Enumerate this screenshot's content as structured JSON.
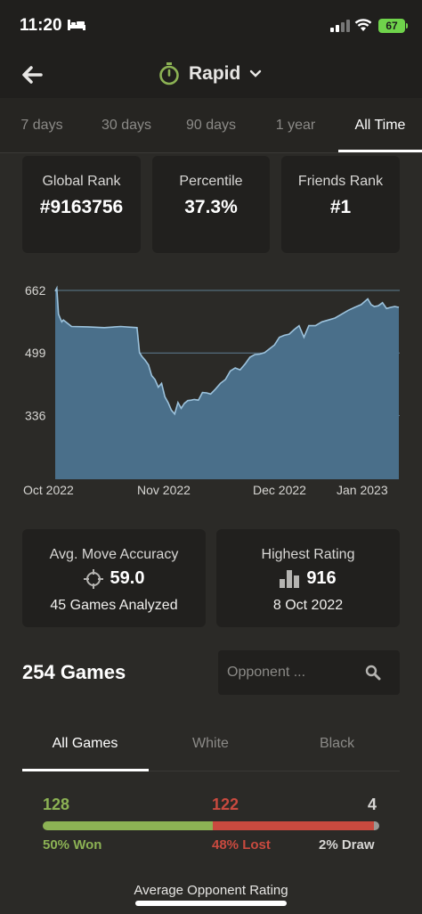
{
  "status": {
    "time": "11:20",
    "battery": "67"
  },
  "header": {
    "title": "Rapid"
  },
  "tabs": [
    "7 days",
    "30 days",
    "90 days",
    "1 year",
    "All Time"
  ],
  "ranks": [
    {
      "label": "Global Rank",
      "value": "#9163756"
    },
    {
      "label": "Percentile",
      "value": "37.3%"
    },
    {
      "label": "Friends Rank",
      "value": "#1"
    }
  ],
  "chart_data": {
    "type": "area",
    "y_ticks": [
      "662",
      "499",
      "336"
    ],
    "x_ticks": [
      "Oct 2022",
      "Nov 2022",
      "Dec 2022",
      "Jan 2023"
    ],
    "ylim": [
      170,
      662
    ],
    "x": [
      0,
      2,
      4,
      6,
      8,
      10,
      20,
      40,
      60,
      80,
      100,
      103,
      106,
      110,
      114,
      118,
      122,
      126,
      130,
      134,
      138,
      142,
      146,
      150,
      154,
      158,
      162,
      166,
      170,
      175,
      180,
      185,
      190,
      196,
      202,
      208,
      214,
      220,
      226,
      232,
      238,
      244,
      250,
      256,
      262,
      268,
      274,
      280,
      286,
      292,
      298,
      304,
      310,
      318,
      326,
      334,
      342,
      350,
      358,
      366,
      374,
      382,
      386,
      390,
      395,
      400,
      405,
      410,
      415,
      420
    ],
    "values": [
      660,
      668,
      600,
      590,
      580,
      585,
      568,
      567,
      565,
      568,
      565,
      500,
      490,
      480,
      468,
      440,
      430,
      410,
      420,
      385,
      370,
      350,
      340,
      370,
      355,
      368,
      375,
      376,
      378,
      376,
      396,
      395,
      392,
      405,
      420,
      430,
      452,
      460,
      455,
      470,
      488,
      495,
      496,
      500,
      510,
      520,
      540,
      545,
      548,
      560,
      570,
      540,
      570,
      570,
      580,
      585,
      590,
      600,
      610,
      618,
      625,
      640,
      625,
      620,
      622,
      630,
      615,
      618,
      620,
      618
    ]
  },
  "accuracy": {
    "title": "Avg. Move Accuracy",
    "value": "59.0",
    "sub": "45 Games Analyzed"
  },
  "highest": {
    "title": "Highest Rating",
    "value": "916",
    "sub": "8 Oct 2022"
  },
  "games": {
    "count": "254 Games",
    "search_placeholder": "Opponent ..."
  },
  "color_tabs": [
    "All Games",
    "White",
    "Black"
  ],
  "results": {
    "won": "128",
    "lost": "122",
    "draw": "4",
    "won_pct": "50% Won",
    "lost_pct": "48% Lost",
    "draw_pct": "2% Draw",
    "won_frac": 0.504,
    "lost_frac": 0.48,
    "draw_frac": 0.016
  },
  "avg_label": "Average Opponent Rating",
  "colors": {
    "won": "#8cb254",
    "lost": "#c94a3f",
    "draw": "#9a9895",
    "chart_fill": "#4a6f8a",
    "chart_line": "#9cc2dc"
  }
}
